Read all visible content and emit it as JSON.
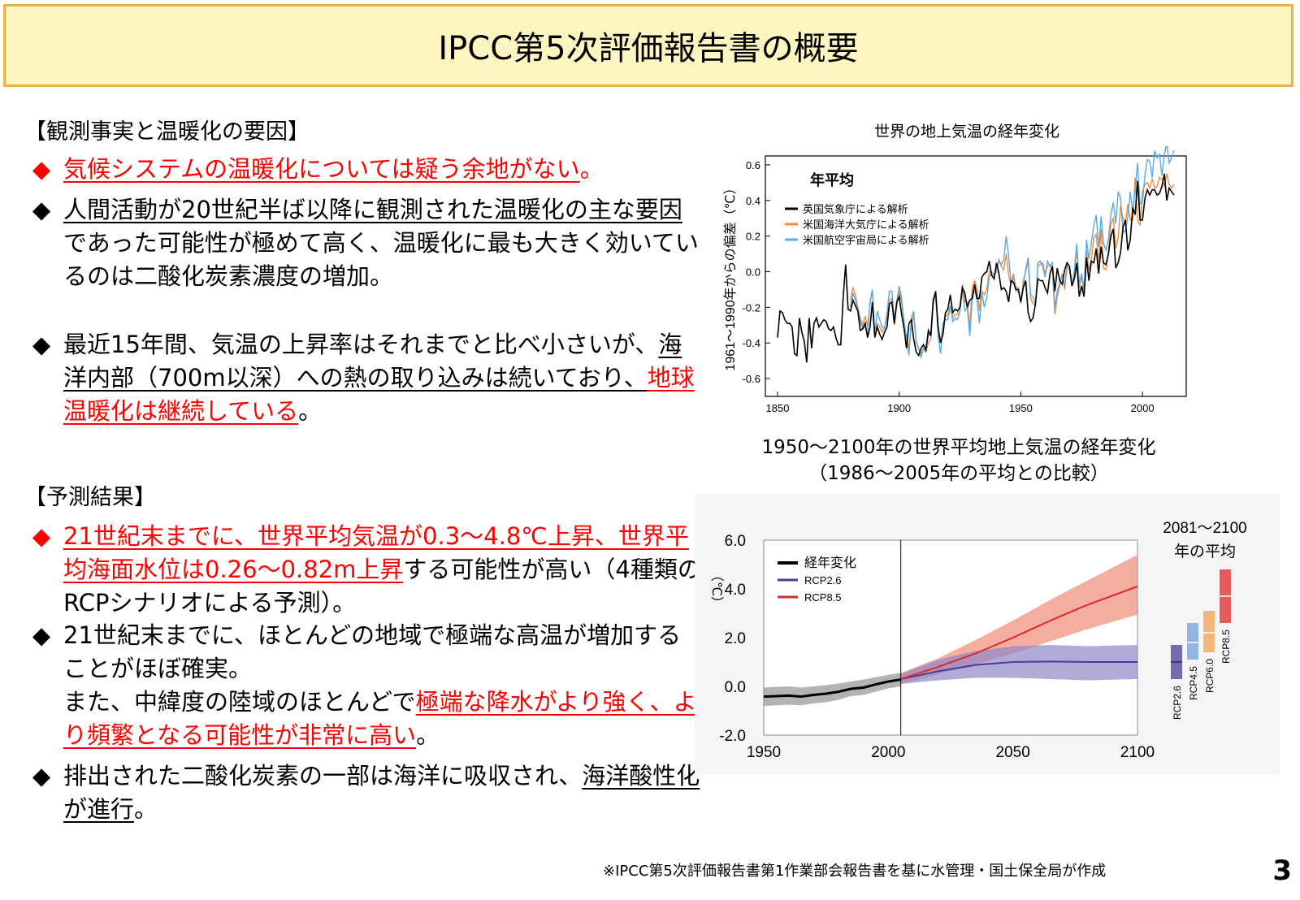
{
  "title": "IPCC第5次評価報告書の概要",
  "section1": {
    "heading": "【観測事実と温暖化の要因】",
    "bullets": [
      {
        "marker": "◆",
        "parts": [
          "気候システムの温暖化については疑う余地がない",
          "。"
        ]
      },
      {
        "marker": "◆",
        "parts": [
          "人間活動が20世紀半ば以降に観測された温暖化の主な要因",
          "であった可能性が極めて高く、温暖化に最も大きく効いているのは二酸化炭素濃度の増加。"
        ]
      },
      {
        "marker": "◆",
        "parts": [
          "最近15年間、気温の上昇率はそれまでと比べ小さいが、",
          "海洋内部（700m以深）への熱の取り込みは続いており、",
          "地球温暖化は継続している",
          "。"
        ]
      }
    ]
  },
  "section2": {
    "heading": "【予測結果】",
    "bullets": [
      {
        "marker": "◆",
        "parts": [
          "21世紀末までに、世界平均気温が0.3～4.8℃上昇、世界平均海面水位は0.26～0.82m上昇",
          "する可能性が高い（4種類のRCPシナリオによる予測）。"
        ]
      },
      {
        "marker": "◆",
        "parts": [
          "21世紀末までに、ほとんどの地域で極端な高温が増加することがほぼ確実。",
          "また、中緯度の陸域のほとんどで",
          "極端な降水がより強く、より頻繁となる可能性が非常に高い",
          "。"
        ]
      },
      {
        "marker": "◆",
        "parts": [
          "排出された二酸化炭素の一部は海洋に吸収され、",
          "海洋酸性化が進行",
          "。"
        ]
      }
    ]
  },
  "colors": {
    "red": "#ff0000",
    "title_bg": "#fff5c0",
    "title_border": "#f0b040",
    "black_series": "#000000",
    "orange_series": "#f08c3c",
    "blue_series": "#5aaae6",
    "rcp26": "#4b3c9b",
    "rcp85": "#dc2828"
  },
  "chart_data": [
    {
      "type": "line",
      "title": "世界の地上気温の経年変化",
      "ylabel": "1961～1990年からの偏差（℃）",
      "xlabel": "",
      "xlim": [
        1845,
        2018
      ],
      "ylim": [
        -0.7,
        0.65
      ],
      "xticks": [
        "1850",
        "1900",
        "1950",
        "2000"
      ],
      "xtick_values": [
        1850,
        1900,
        1950,
        2000
      ],
      "yticks": [
        "0.6",
        "0.4",
        "0.2",
        "0.0",
        "-0.2",
        "-0.4",
        "-0.6"
      ],
      "ytick_values": [
        0.6,
        0.4,
        0.2,
        0.0,
        -0.2,
        -0.4,
        -0.6
      ],
      "legend_title": "年平均",
      "legend_position": "top-left",
      "series": [
        {
          "name": "英国気象庁による解析",
          "color": "#000000",
          "x_start": 1850,
          "values": [
            -0.37,
            -0.22,
            -0.23,
            -0.27,
            -0.29,
            -0.29,
            -0.31,
            -0.46,
            -0.47,
            -0.26,
            -0.34,
            -0.39,
            -0.51,
            -0.26,
            -0.43,
            -0.29,
            -0.26,
            -0.31,
            -0.29,
            -0.27,
            -0.28,
            -0.32,
            -0.33,
            -0.31,
            -0.37,
            -0.41,
            -0.41,
            -0.14,
            0.04,
            -0.21,
            -0.22,
            -0.16,
            -0.19,
            -0.22,
            -0.33,
            -0.32,
            -0.29,
            -0.37,
            -0.31,
            -0.17,
            -0.37,
            -0.31,
            -0.35,
            -0.38,
            -0.34,
            -0.31,
            -0.18,
            -0.17,
            -0.29,
            -0.17,
            -0.14,
            -0.24,
            -0.32,
            -0.43,
            -0.29,
            -0.27,
            -0.38,
            -0.45,
            -0.47,
            -0.43,
            -0.41,
            -0.44,
            -0.33,
            -0.36,
            -0.16,
            -0.11,
            -0.31,
            -0.4,
            -0.35,
            -0.23,
            -0.21,
            -0.13,
            -0.23,
            -0.21,
            -0.22,
            -0.2,
            -0.09,
            -0.12,
            -0.2,
            -0.16,
            -0.15,
            -0.07,
            -0.15,
            -0.15,
            -0.03,
            -0.01,
            0.0,
            0.06,
            -0.02,
            -0.04,
            0.05,
            -0.01,
            -0.1,
            -0.09,
            -0.11,
            -0.17,
            -0.05,
            -0.06,
            -0.1,
            -0.1,
            -0.17,
            -0.09,
            -0.05,
            -0.23,
            -0.28,
            -0.26,
            -0.18,
            -0.04,
            -0.05,
            -0.05,
            -0.09,
            -0.12,
            -0.01,
            0.03,
            -0.11,
            0.02,
            -0.05,
            -0.07,
            0.01,
            0.05,
            0.03,
            -0.08,
            -0.04,
            0.05,
            -0.14,
            -0.08,
            -0.14,
            0.08,
            -0.05,
            0.06,
            0.05,
            0.13,
            -0.01,
            0.14,
            0.05,
            0.04,
            0.1,
            0.2,
            0.24,
            0.02,
            0.05,
            0.11,
            0.25,
            0.29,
            0.12,
            0.18,
            0.36,
            0.32,
            0.51,
            0.29,
            0.29,
            0.41,
            0.46,
            0.43,
            0.46,
            0.46,
            0.43,
            0.44,
            0.48,
            0.55,
            0.4,
            0.47,
            0.45,
            0.43
          ]
        },
        {
          "name": "米国海洋大気庁による解析",
          "color": "#f08c3c",
          "x_start": 1880,
          "values": [
            -0.16,
            -0.09,
            -0.13,
            -0.2,
            -0.26,
            -0.3,
            -0.25,
            -0.31,
            -0.18,
            -0.1,
            -0.36,
            -0.29,
            -0.31,
            -0.34,
            -0.31,
            -0.26,
            -0.16,
            -0.15,
            -0.3,
            -0.19,
            -0.11,
            -0.17,
            -0.29,
            -0.36,
            -0.43,
            -0.3,
            -0.24,
            -0.4,
            -0.43,
            -0.46,
            -0.43,
            -0.45,
            -0.4,
            -0.38,
            -0.19,
            -0.11,
            -0.33,
            -0.39,
            -0.3,
            -0.25,
            -0.24,
            -0.19,
            -0.26,
            -0.24,
            -0.24,
            -0.19,
            -0.07,
            -0.17,
            -0.17,
            -0.32,
            -0.09,
            -0.05,
            -0.1,
            -0.22,
            -0.11,
            -0.13,
            -0.1,
            0.0,
            0.0,
            -0.02,
            0.0,
            0.07,
            0.03,
            0.01,
            0.1,
            -0.02,
            -0.07,
            -0.01,
            -0.09,
            -0.09,
            -0.18,
            -0.05,
            0.0,
            0.06,
            -0.15,
            -0.18,
            -0.19,
            0.03,
            0.04,
            0.05,
            -0.01,
            0.03,
            0.04,
            0.0,
            -0.24,
            -0.14,
            -0.08,
            -0.01,
            -0.1,
            0.03,
            0.01,
            -0.08,
            -0.01,
            0.13,
            -0.09,
            -0.02,
            -0.13,
            0.12,
            0.01,
            0.07,
            0.19,
            0.21,
            0.05,
            0.24,
            0.02,
            0.01,
            0.11,
            0.27,
            0.3,
            0.13,
            0.19,
            0.37,
            0.3,
            0.27,
            0.38,
            0.29,
            0.29,
            0.53,
            0.29,
            0.26,
            0.45,
            0.49,
            0.5,
            0.47,
            0.52,
            0.47,
            0.48,
            0.53,
            0.52,
            0.48,
            0.55,
            0.49,
            0.47,
            0.49
          ]
        },
        {
          "name": "米国航空宇宙局による解析",
          "color": "#5aaae6",
          "x_start": 1880,
          "values": [
            -0.2,
            -0.12,
            -0.16,
            -0.21,
            -0.28,
            -0.32,
            -0.31,
            -0.35,
            -0.17,
            -0.1,
            -0.35,
            -0.22,
            -0.27,
            -0.31,
            -0.32,
            -0.23,
            -0.11,
            -0.11,
            -0.27,
            -0.17,
            -0.08,
            -0.15,
            -0.28,
            -0.37,
            -0.47,
            -0.26,
            -0.22,
            -0.39,
            -0.43,
            -0.48,
            -0.43,
            -0.44,
            -0.36,
            -0.34,
            -0.15,
            -0.14,
            -0.36,
            -0.46,
            -0.29,
            -0.27,
            -0.27,
            -0.19,
            -0.28,
            -0.26,
            -0.27,
            -0.22,
            -0.1,
            -0.22,
            -0.2,
            -0.36,
            -0.16,
            -0.1,
            -0.16,
            -0.29,
            -0.12,
            -0.2,
            -0.15,
            -0.03,
            -0.01,
            -0.02,
            0.01,
            0.06,
            0.04,
            0.07,
            0.2,
            0.09,
            -0.07,
            -0.03,
            -0.11,
            -0.11,
            -0.17,
            -0.07,
            0.01,
            0.08,
            -0.13,
            -0.14,
            -0.19,
            0.05,
            0.06,
            0.03,
            -0.03,
            0.06,
            0.03,
            0.05,
            -0.2,
            -0.11,
            -0.06,
            -0.02,
            -0.08,
            0.05,
            0.03,
            -0.08,
            0.01,
            0.16,
            -0.07,
            -0.01,
            -0.1,
            0.18,
            0.07,
            0.16,
            0.26,
            0.32,
            0.14,
            0.31,
            0.16,
            0.12,
            0.18,
            0.32,
            0.39,
            0.27,
            0.45,
            0.41,
            0.22,
            0.23,
            0.31,
            0.45,
            0.33,
            0.46,
            0.61,
            0.38,
            0.39,
            0.54,
            0.63,
            0.62,
            0.53,
            0.68,
            0.64,
            0.66,
            0.54,
            0.66,
            0.72,
            0.61,
            0.64,
            0.68
          ]
        }
      ]
    },
    {
      "type": "area",
      "title": "1950～2100年の世界平均地上気温の経年変化（1986～2005年の平均との比較）",
      "ylabel": "（℃）",
      "xlim": [
        1950,
        2100
      ],
      "ylim": [
        -2.0,
        6.0
      ],
      "xticks": [
        "1950",
        "2000",
        "2050",
        "2100"
      ],
      "xtick_values": [
        1950,
        2000,
        2050,
        2100
      ],
      "yticks": [
        "6.0",
        "4.0",
        "2.0",
        "0.0",
        "-2.0"
      ],
      "ytick_values": [
        6.0,
        4.0,
        2.0,
        0.0,
        -2.0
      ],
      "divider_year": 2005,
      "legend": [
        "経年変化",
        "RCP2.6",
        "RCP8.5"
      ],
      "legend_position": "top-left",
      "series": [
        {
          "name": "経年変化",
          "color": "#000000",
          "x": [
            1950,
            1955,
            1960,
            1965,
            1970,
            1975,
            1980,
            1985,
            1990,
            1995,
            2000,
            2005
          ],
          "values": [
            -0.42,
            -0.4,
            -0.38,
            -0.42,
            -0.35,
            -0.3,
            -0.22,
            -0.1,
            -0.05,
            0.08,
            0.2,
            0.28
          ],
          "band_low": [
            -0.8,
            -0.78,
            -0.75,
            -0.78,
            -0.7,
            -0.65,
            -0.55,
            -0.4,
            -0.35,
            -0.22,
            -0.08,
            0.0
          ],
          "band_high": [
            -0.05,
            -0.02,
            0.0,
            -0.05,
            0.0,
            0.05,
            0.12,
            0.2,
            0.28,
            0.38,
            0.48,
            0.55
          ]
        },
        {
          "name": "RCP2.6",
          "color": "#4b3c9b",
          "x": [
            2005,
            2020,
            2035,
            2050,
            2065,
            2080,
            2100
          ],
          "values": [
            0.3,
            0.62,
            0.88,
            1.0,
            1.02,
            1.0,
            1.0
          ],
          "band_low": [
            0.1,
            0.25,
            0.35,
            0.35,
            0.3,
            0.25,
            0.3
          ],
          "band_high": [
            0.5,
            1.1,
            1.45,
            1.65,
            1.7,
            1.65,
            1.7
          ]
        },
        {
          "name": "RCP8.5",
          "color": "#dc2828",
          "x": [
            2005,
            2020,
            2035,
            2050,
            2065,
            2080,
            2100
          ],
          "values": [
            0.3,
            0.8,
            1.35,
            2.0,
            2.7,
            3.35,
            4.1
          ],
          "band_low": [
            0.1,
            0.5,
            0.9,
            1.35,
            1.85,
            2.35,
            2.95
          ],
          "band_high": [
            0.55,
            1.15,
            1.9,
            2.7,
            3.55,
            4.35,
            5.4
          ]
        }
      ],
      "period_label": "2081～2100年の平均",
      "range_bars": [
        {
          "name": "RCP2.6",
          "color": "#4b3c9b",
          "low": 0.3,
          "mean": 1.0,
          "high": 1.7
        },
        {
          "name": "RCP4.5",
          "color": "#6fa0dc",
          "low": 1.1,
          "mean": 1.8,
          "high": 2.6
        },
        {
          "name": "RCP6.0",
          "color": "#f0a050",
          "low": 1.4,
          "mean": 2.2,
          "high": 3.1
        },
        {
          "name": "RCP8.5",
          "color": "#dc2828",
          "low": 2.6,
          "mean": 3.7,
          "high": 4.8
        }
      ]
    }
  ],
  "footnote": "※IPCC第5次評価報告書第1作業部会報告書を基に水管理・国土保全局が作成",
  "page_number": "3"
}
